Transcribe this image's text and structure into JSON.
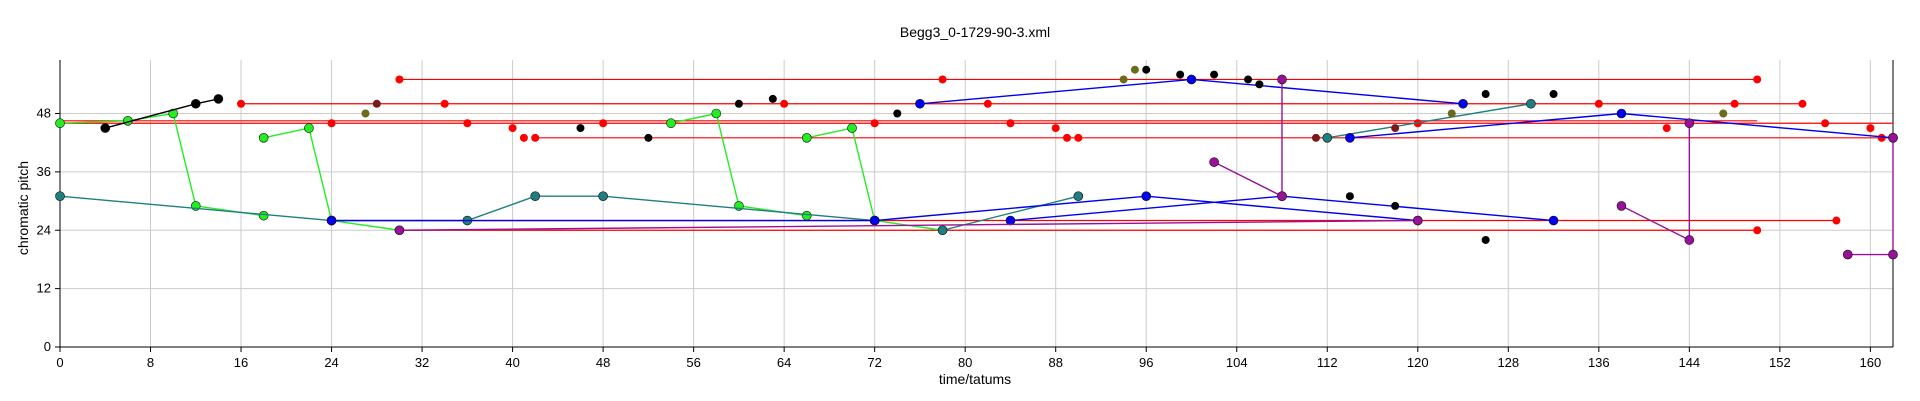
{
  "chart_data": {
    "type": "scatter",
    "title": "Begg3_0-1729-90-3.xml",
    "xlabel": "time/tatums",
    "ylabel": "chromatic pitch",
    "xlim": [
      0,
      162
    ],
    "ylim": [
      0,
      59
    ],
    "xticks": [
      0,
      8,
      16,
      24,
      32,
      40,
      48,
      56,
      64,
      72,
      80,
      88,
      96,
      104,
      112,
      120,
      128,
      136,
      144,
      152,
      160
    ],
    "yticks": [
      0,
      12,
      24,
      36,
      48
    ],
    "grid": true,
    "legend": "none",
    "colors": {
      "red": "#ff0000",
      "green": "#22ee22",
      "teal": "#1f7f7f",
      "blue": "#0000ee",
      "purple": "#991199",
      "black": "#000000",
      "olive": "#6b6b1a",
      "darkred": "#7a1a1a"
    },
    "series": [
      {
        "color": "red",
        "kind": "segments",
        "values": [
          [
            [
              0,
              46
            ],
            [
              162,
              46
            ]
          ],
          [
            [
              0,
              46.5
            ],
            [
              150,
              46.5
            ]
          ],
          [
            [
              16,
              50
            ],
            [
              154,
              50
            ]
          ],
          [
            [
              30,
              55
            ],
            [
              150,
              55
            ]
          ],
          [
            [
              42,
              43
            ],
            [
              162,
              43
            ]
          ],
          [
            [
              24,
              26
            ],
            [
              157,
              26
            ]
          ],
          [
            [
              30,
              24
            ],
            [
              150,
              24
            ]
          ]
        ]
      },
      {
        "color": "red",
        "kind": "points",
        "values": [
          [
            0,
            46
          ],
          [
            16,
            50
          ],
          [
            22,
            45
          ],
          [
            24,
            46
          ],
          [
            30,
            55
          ],
          [
            34,
            50
          ],
          [
            36,
            46
          ],
          [
            40,
            45
          ],
          [
            41,
            43
          ],
          [
            42,
            43
          ],
          [
            48,
            46
          ],
          [
            64,
            50
          ],
          [
            70,
            45
          ],
          [
            72,
            46
          ],
          [
            76,
            50
          ],
          [
            78,
            55
          ],
          [
            82,
            50
          ],
          [
            84,
            46
          ],
          [
            88,
            45
          ],
          [
            89,
            43
          ],
          [
            90,
            43
          ],
          [
            120,
            46
          ],
          [
            136,
            50
          ],
          [
            142,
            45
          ],
          [
            144,
            46
          ],
          [
            148,
            50
          ],
          [
            150,
            55
          ],
          [
            154,
            50
          ],
          [
            156,
            46
          ],
          [
            160,
            45
          ],
          [
            161,
            43
          ],
          [
            162,
            43
          ],
          [
            30,
            24
          ],
          [
            36,
            26
          ],
          [
            78,
            24
          ],
          [
            84,
            26
          ],
          [
            150,
            24
          ],
          [
            157,
            26
          ]
        ]
      },
      {
        "color": "green",
        "kind": "line",
        "values": [
          [
            0,
            46
          ],
          [
            6,
            46.5
          ],
          [
            10,
            48
          ],
          [
            12,
            29
          ],
          [
            18,
            27
          ]
        ]
      },
      {
        "color": "green",
        "kind": "line",
        "values": [
          [
            18,
            43
          ],
          [
            22,
            45
          ],
          [
            24,
            26
          ],
          [
            30,
            24
          ]
        ]
      },
      {
        "color": "green",
        "kind": "line",
        "values": [
          [
            54,
            46
          ],
          [
            58,
            48
          ],
          [
            60,
            29
          ],
          [
            66,
            27
          ]
        ]
      },
      {
        "color": "green",
        "kind": "line",
        "values": [
          [
            66,
            43
          ],
          [
            70,
            45
          ],
          [
            72,
            26
          ],
          [
            78,
            24
          ]
        ]
      },
      {
        "color": "black",
        "kind": "line",
        "values": [
          [
            4,
            45
          ],
          [
            12,
            50
          ],
          [
            14,
            51
          ]
        ]
      },
      {
        "color": "teal",
        "kind": "line",
        "values": [
          [
            0,
            31
          ],
          [
            24,
            26
          ],
          [
            36,
            26
          ],
          [
            42,
            31
          ],
          [
            48,
            31
          ],
          [
            72,
            26
          ]
        ]
      },
      {
        "color": "teal",
        "kind": "line",
        "values": [
          [
            78,
            24
          ],
          [
            90,
            31
          ]
        ]
      },
      {
        "color": "teal",
        "kind": "line",
        "values": [
          [
            112,
            43
          ],
          [
            130,
            50
          ]
        ]
      },
      {
        "color": "blue",
        "kind": "line",
        "values": [
          [
            24,
            26
          ],
          [
            72,
            26
          ],
          [
            96,
            31
          ],
          [
            120,
            26
          ]
        ]
      },
      {
        "color": "blue",
        "kind": "line",
        "values": [
          [
            84,
            26
          ],
          [
            108,
            31
          ],
          [
            132,
            26
          ]
        ]
      },
      {
        "color": "blue",
        "kind": "line",
        "values": [
          [
            76,
            50
          ],
          [
            100,
            55
          ],
          [
            124,
            50
          ]
        ]
      },
      {
        "color": "blue",
        "kind": "line",
        "values": [
          [
            114,
            43
          ],
          [
            138,
            48
          ],
          [
            162,
            43
          ]
        ]
      },
      {
        "color": "purple",
        "kind": "line",
        "values": [
          [
            30,
            24
          ],
          [
            120,
            26
          ]
        ]
      },
      {
        "color": "purple",
        "kind": "line",
        "values": [
          [
            102,
            38
          ],
          [
            108,
            31
          ],
          [
            108,
            55
          ]
        ]
      },
      {
        "color": "purple",
        "kind": "line",
        "values": [
          [
            138,
            29
          ],
          [
            144,
            22
          ],
          [
            144,
            46
          ]
        ]
      },
      {
        "color": "purple",
        "kind": "line",
        "values": [
          [
            158,
            19
          ],
          [
            162,
            19
          ],
          [
            162,
            43
          ]
        ]
      },
      {
        "color": "black",
        "kind": "points",
        "values": [
          [
            46,
            45
          ],
          [
            52,
            43
          ],
          [
            60,
            50
          ],
          [
            63,
            51
          ],
          [
            74,
            48
          ],
          [
            96,
            57
          ],
          [
            99,
            56
          ],
          [
            102,
            56
          ],
          [
            105,
            55
          ],
          [
            106,
            54
          ],
          [
            114,
            31
          ],
          [
            118,
            29
          ],
          [
            126,
            22
          ],
          [
            126,
            52
          ],
          [
            132,
            52
          ]
        ]
      },
      {
        "color": "olive",
        "kind": "points",
        "values": [
          [
            27,
            48
          ],
          [
            94,
            55
          ],
          [
            95,
            57
          ],
          [
            123,
            48
          ],
          [
            147,
            48
          ]
        ]
      },
      {
        "color": "darkred",
        "kind": "points",
        "values": [
          [
            28,
            50
          ],
          [
            111,
            43
          ],
          [
            118,
            45
          ]
        ]
      }
    ]
  }
}
